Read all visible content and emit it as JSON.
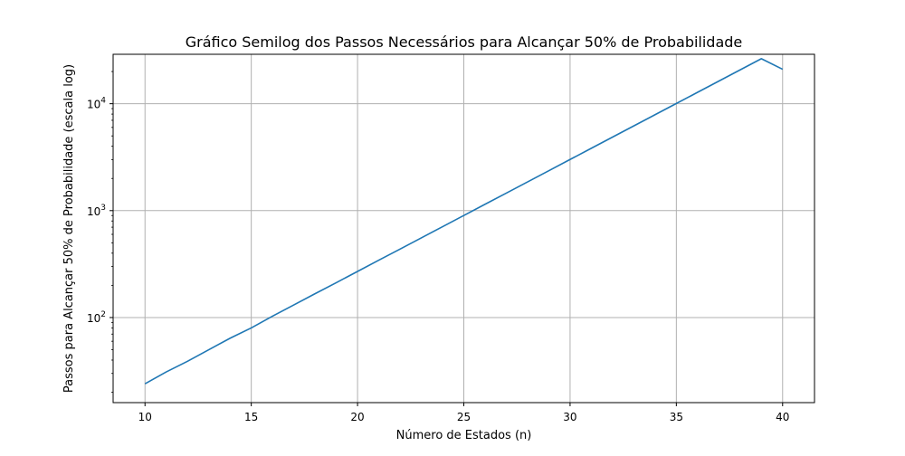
{
  "chart_data": {
    "type": "line",
    "title": "Gráfico Semilog dos Passos Necessários para Alcançar 50% de Probabilidade",
    "xlabel": "Número de Estados (n)",
    "ylabel": "Passos para Alcançar 50% de Probabilidade (escala log)",
    "yscale": "log",
    "grid": true,
    "legend": "none",
    "xlim": [
      8.5,
      41.5
    ],
    "ylim": [
      16,
      29000
    ],
    "x_ticks": [
      10,
      15,
      20,
      25,
      30,
      35,
      40
    ],
    "y_ticks": [
      {
        "value": 100,
        "base": "10",
        "exp": "2"
      },
      {
        "value": 1000,
        "base": "10",
        "exp": "3"
      },
      {
        "value": 10000,
        "base": "10",
        "exp": "4"
      }
    ],
    "series": [
      {
        "color": "#1f77b4",
        "x": [
          10,
          11,
          12,
          13,
          14,
          15,
          16,
          17,
          18,
          19,
          20,
          21,
          22,
          23,
          24,
          25,
          26,
          27,
          28,
          29,
          30,
          31,
          32,
          33,
          34,
          35,
          36,
          37,
          38,
          39,
          40
        ],
        "y": [
          24,
          31,
          39,
          50,
          64,
          80,
          103,
          131,
          167,
          212,
          270,
          344,
          437,
          556,
          708,
          901,
          1147,
          1459,
          1857,
          2364,
          3009,
          3830,
          4874,
          6204,
          7897,
          10050,
          12790,
          16280,
          20720,
          26370,
          21000
        ]
      }
    ]
  }
}
